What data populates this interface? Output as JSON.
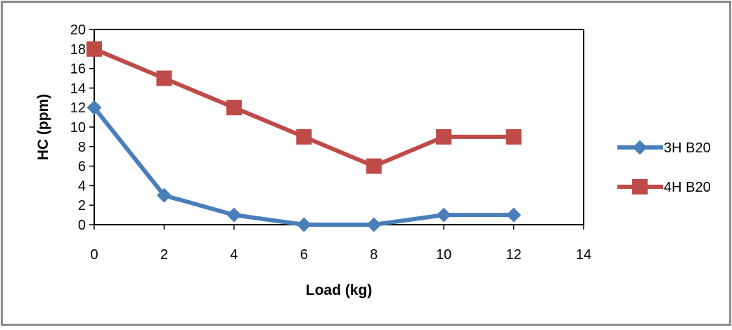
{
  "chart_data": {
    "type": "line",
    "title": "",
    "xlabel": "Load (kg)",
    "ylabel": "HC (ppm)",
    "xlim": [
      0,
      14
    ],
    "ylim": [
      0,
      20
    ],
    "xticks": [
      0,
      2,
      4,
      6,
      8,
      10,
      12,
      14
    ],
    "yticks": [
      0,
      2,
      4,
      6,
      8,
      10,
      12,
      14,
      16,
      18,
      20
    ],
    "grid": false,
    "legend_position": "right",
    "series": [
      {
        "name": "3H B20",
        "color": "#4a7ebb",
        "marker": "diamond",
        "x": [
          0,
          2,
          4,
          6,
          8,
          10,
          12
        ],
        "y": [
          12,
          3,
          1,
          0,
          0,
          1,
          1
        ]
      },
      {
        "name": "4H B20",
        "color": "#be4b48",
        "marker": "square",
        "x": [
          0,
          2,
          4,
          6,
          8,
          10,
          12
        ],
        "y": [
          18,
          15,
          12,
          9,
          6,
          9,
          9
        ]
      }
    ]
  }
}
